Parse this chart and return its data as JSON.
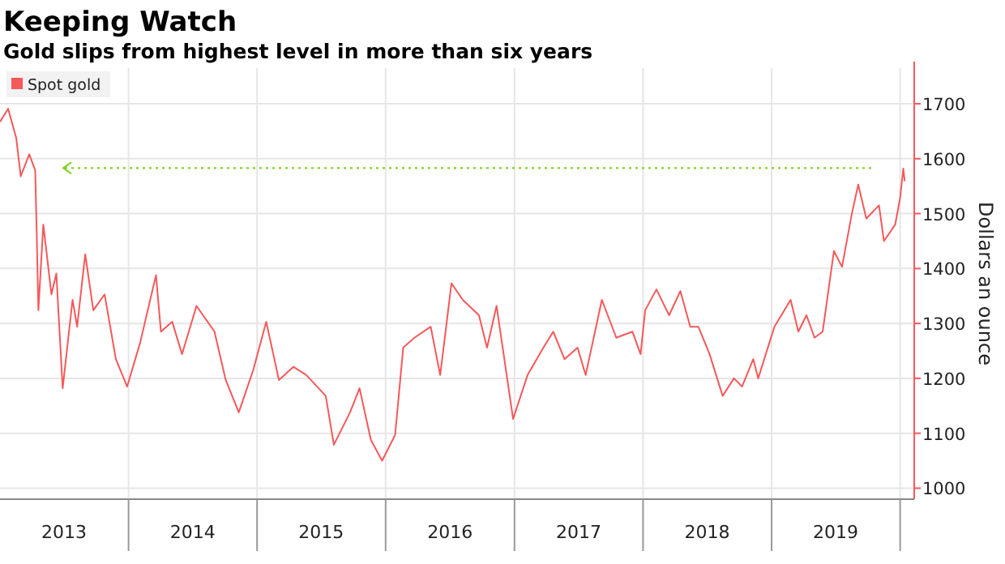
{
  "chart_data": {
    "type": "line",
    "title": "Keeping Watch",
    "subtitle": "Gold slips from highest level in more than six years",
    "ylabel": "Dollars an ounce",
    "x": [
      "2013-01-01",
      "2013-01-24",
      "2013-02-16",
      "2013-03-01",
      "2013-03-25",
      "2013-04-11",
      "2013-04-15",
      "2013-04-20",
      "2013-05-04",
      "2013-05-27",
      "2013-06-10",
      "2013-06-28",
      "2013-07-26",
      "2013-08-08",
      "2013-08-31",
      "2013-09-23",
      "2013-10-25",
      "2013-11-26",
      "2013-12-28",
      "2014-02-03",
      "2014-03-20",
      "2014-04-03",
      "2014-05-05",
      "2014-06-02",
      "2014-07-13",
      "2014-09-02",
      "2014-10-04",
      "2014-11-10",
      "2014-12-21",
      "2015-01-27",
      "2015-03-04",
      "2015-04-14",
      "2015-05-21",
      "2015-07-15",
      "2015-08-07",
      "2015-09-22",
      "2015-10-19",
      "2015-11-20",
      "2015-12-22",
      "2016-01-28",
      "2016-02-20",
      "2016-03-23",
      "2016-05-08",
      "2016-06-04",
      "2016-07-06",
      "2016-08-07",
      "2016-09-22",
      "2016-10-15",
      "2016-11-11",
      "2016-12-28",
      "2017-02-07",
      "2017-03-24",
      "2017-04-21",
      "2017-05-23",
      "2017-06-29",
      "2017-07-22",
      "2017-09-06",
      "2017-10-17",
      "2017-12-02",
      "2017-12-25",
      "2018-01-07",
      "2018-02-08",
      "2018-03-16",
      "2018-04-17",
      "2018-05-15",
      "2018-06-07",
      "2018-07-09",
      "2018-08-15",
      "2018-09-16",
      "2018-10-09",
      "2018-11-10",
      "2018-11-24",
      "2019-01-09",
      "2019-02-24",
      "2019-03-18",
      "2019-04-10",
      "2019-05-03",
      "2019-05-26",
      "2019-06-27",
      "2019-07-20",
      "2019-08-17",
      "2019-09-04",
      "2019-09-27",
      "2019-11-02",
      "2019-11-16",
      "2019-12-18",
      "2020-01-01",
      "2020-01-10",
      "2020-01-14"
    ],
    "series": [
      {
        "name": "Spot gold",
        "color": "#f4595b",
        "values": [
          1667,
          1691,
          1638,
          1568,
          1608,
          1579,
          1470,
          1324,
          1480,
          1353,
          1391,
          1182,
          1343,
          1294,
          1426,
          1324,
          1353,
          1235,
          1185,
          1265,
          1388,
          1285,
          1303,
          1244,
          1332,
          1285,
          1197,
          1138,
          1215,
          1303,
          1197,
          1221,
          1206,
          1168,
          1079,
          1138,
          1182,
          1088,
          1050,
          1097,
          1256,
          1274,
          1294,
          1206,
          1373,
          1343,
          1315,
          1256,
          1332,
          1126,
          1206,
          1256,
          1285,
          1235,
          1256,
          1206,
          1343,
          1274,
          1285,
          1244,
          1324,
          1362,
          1315,
          1359,
          1294,
          1294,
          1244,
          1168,
          1200,
          1185,
          1235,
          1200,
          1294,
          1343,
          1285,
          1315,
          1274,
          1285,
          1432,
          1403,
          1500,
          1553,
          1491,
          1515,
          1450,
          1480,
          1529,
          1582,
          1559
        ]
      }
    ],
    "xlim": [
      "2013-01-01",
      "2020-02-10"
    ],
    "xticks": [
      {
        "value": "2013-07-02",
        "label": "2013"
      },
      {
        "value": "2014-01-01",
        "label": null
      },
      {
        "value": "2014-07-02",
        "label": "2014"
      },
      {
        "value": "2015-01-01",
        "label": null
      },
      {
        "value": "2015-07-02",
        "label": "2015"
      },
      {
        "value": "2016-01-01",
        "label": null
      },
      {
        "value": "2016-07-02",
        "label": "2016"
      },
      {
        "value": "2017-01-01",
        "label": null
      },
      {
        "value": "2017-07-02",
        "label": "2017"
      },
      {
        "value": "2018-01-01",
        "label": null
      },
      {
        "value": "2018-07-02",
        "label": "2018"
      },
      {
        "value": "2019-01-01",
        "label": null
      },
      {
        "value": "2019-07-02",
        "label": "2019"
      },
      {
        "value": "2020-01-01",
        "label": null
      }
    ],
    "ylim": [
      980,
      1765
    ],
    "yticks": [
      1000,
      1100,
      1200,
      1300,
      1400,
      1500,
      1600,
      1700
    ],
    "ref_lines": [
      {
        "axis": "y",
        "value": 1583,
        "color": "#7ed321",
        "line_style": "dotted"
      }
    ],
    "grid": true,
    "legend": "top left"
  }
}
